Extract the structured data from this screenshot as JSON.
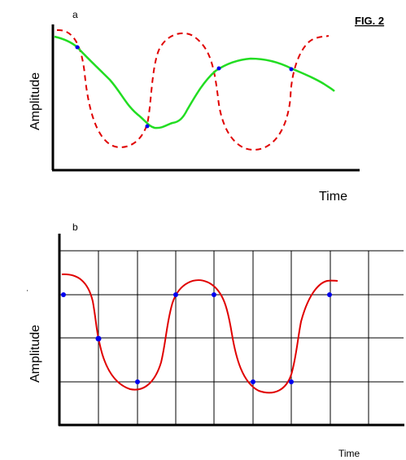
{
  "figure_label": "FIG. 2",
  "panel_a": {
    "letter": "a",
    "ylabel": "Amplitude",
    "xlabel": "Time"
  },
  "panel_b": {
    "letter": "b",
    "ylabel": "Amplitude",
    "xlabel": "Time",
    "sample_points": 8
  },
  "colors": {
    "axis": "#000000",
    "true_signal": "#e00000",
    "reconstructed": "#22dd22",
    "sample_point": "#0000ee",
    "grid": "#000000"
  }
}
